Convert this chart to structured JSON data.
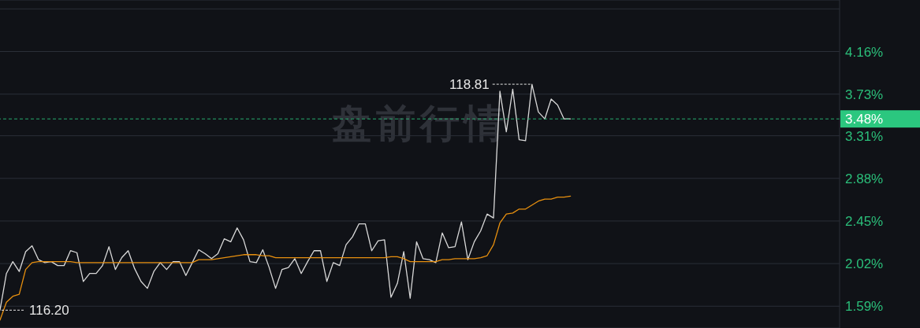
{
  "chart_data": {
    "type": "line",
    "categories": [
      null,
      null,
      null,
      null,
      null,
      null,
      null,
      null,
      null,
      null,
      null,
      null,
      null,
      null,
      null,
      null,
      null,
      null,
      null,
      null,
      null,
      null,
      null,
      null,
      null,
      null,
      null,
      null,
      null,
      null,
      null,
      null,
      null,
      null,
      null,
      null,
      null,
      null,
      null,
      null,
      null,
      null,
      null,
      null,
      null,
      null,
      null,
      null,
      null,
      null,
      null,
      null,
      null,
      null,
      null,
      null,
      null,
      null,
      null,
      null,
      null,
      null,
      null,
      null,
      null,
      null,
      null,
      null,
      null,
      null,
      null,
      null,
      null,
      null,
      null,
      null,
      null,
      null,
      null,
      null,
      null,
      null,
      null,
      null,
      null,
      null,
      null,
      null,
      null,
      null,
      null,
      null,
      null,
      null,
      null,
      null,
      null,
      null,
      null,
      null,
      null,
      null,
      null,
      null,
      null,
      null,
      null,
      null,
      null,
      null,
      null,
      null,
      null,
      null,
      null,
      null,
      null,
      null,
      null,
      null,
      null,
      null,
      null,
      null,
      null,
      null,
      null,
      null,
      null,
      null,
      null,
      null
    ],
    "series": [
      {
        "color": "#d9d9d9",
        "values": [
          1.55,
          1.92,
          2.04,
          1.94,
          2.14,
          2.2,
          2.06,
          2.03,
          2.04,
          2.0,
          2.0,
          2.15,
          2.13,
          1.84,
          1.92,
          1.92,
          2.0,
          2.19,
          1.96,
          2.08,
          2.15,
          1.97,
          1.84,
          1.77,
          1.94,
          2.03,
          1.96,
          2.04,
          2.04,
          1.9,
          2.03,
          2.16,
          2.12,
          2.07,
          2.12,
          2.27,
          2.24,
          2.38,
          2.26,
          2.04,
          2.03,
          2.16,
          1.98,
          1.77,
          1.96,
          1.98,
          2.07,
          1.92,
          2.04,
          2.15,
          2.15,
          1.84,
          2.03,
          2.0,
          2.21,
          2.29,
          2.42,
          2.42,
          2.15,
          2.25,
          2.26,
          1.68,
          1.82,
          2.14,
          1.67,
          2.24,
          2.07,
          2.06,
          2.03,
          2.33,
          2.18,
          2.19,
          2.44,
          2.06,
          2.24,
          2.35,
          2.52,
          2.48,
          3.76,
          3.35,
          3.78,
          3.27,
          3.26,
          3.83,
          3.55,
          3.48,
          3.68,
          3.62,
          3.48,
          3.48,
          null,
          null,
          null,
          null,
          null,
          null,
          null,
          null,
          null,
          null,
          null,
          null,
          null,
          null,
          null,
          null,
          null,
          null,
          null,
          null,
          null,
          null,
          null,
          null,
          null,
          null,
          null,
          null,
          null,
          null,
          null,
          null,
          null,
          null,
          null,
          null,
          null,
          null,
          null,
          null,
          null,
          null
        ]
      },
      {
        "color": "#e8900f",
        "values": [
          1.45,
          1.63,
          1.69,
          1.71,
          1.96,
          2.03,
          2.04,
          2.04,
          2.04,
          2.04,
          2.04,
          2.04,
          2.03,
          2.03,
          2.03,
          2.03,
          2.03,
          2.03,
          2.03,
          2.03,
          2.03,
          2.03,
          2.03,
          2.03,
          2.03,
          2.03,
          2.03,
          2.03,
          2.03,
          2.03,
          2.03,
          2.06,
          2.06,
          2.06,
          2.07,
          2.08,
          2.09,
          2.1,
          2.11,
          2.11,
          2.11,
          2.1,
          2.1,
          2.08,
          2.08,
          2.08,
          2.08,
          2.08,
          2.08,
          2.08,
          2.08,
          2.08,
          2.08,
          2.08,
          2.08,
          2.08,
          2.08,
          2.08,
          2.08,
          2.08,
          2.08,
          2.09,
          2.09,
          2.07,
          2.04,
          2.04,
          2.04,
          2.04,
          2.04,
          2.06,
          2.06,
          2.07,
          2.07,
          2.07,
          2.07,
          2.08,
          2.1,
          2.21,
          2.43,
          2.52,
          2.53,
          2.57,
          2.57,
          2.61,
          2.65,
          2.67,
          2.67,
          2.69,
          2.69,
          2.7,
          null,
          null,
          null,
          null,
          null,
          null,
          null,
          null,
          null,
          null,
          null,
          null,
          null,
          null,
          null,
          null,
          null,
          null,
          null,
          null,
          null,
          null,
          null,
          null,
          null,
          null,
          null,
          null,
          null,
          null,
          null,
          null,
          null,
          null,
          null,
          null,
          null,
          null,
          null,
          null,
          null,
          null
        ]
      }
    ],
    "ylim": [
      1.37,
      4.68
    ],
    "yticks": [
      {
        "value": 4.59,
        "label": null
      },
      {
        "value": 4.16,
        "label": "4.16%"
      },
      {
        "value": 3.73,
        "label": "3.73%"
      },
      {
        "value": 3.31,
        "label": "3.31%"
      },
      {
        "value": 2.88,
        "label": "2.88%"
      },
      {
        "value": 2.45,
        "label": "2.45%"
      },
      {
        "value": 2.02,
        "label": "2.02%"
      },
      {
        "value": 1.59,
        "label": "1.59%"
      }
    ],
    "grid": "y",
    "tick_labels": "y",
    "ref_lines": [
      {
        "axis": "y",
        "value": 3.48,
        "label": "3.48%",
        "color": "#2bc77f",
        "line_style": "dashed"
      }
    ],
    "annotations": [
      "盘前行情",
      "118.81",
      "116.20"
    ]
  }
}
